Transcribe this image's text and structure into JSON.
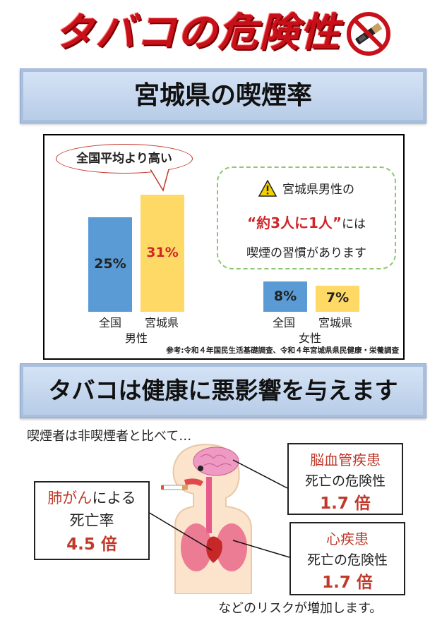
{
  "title": "タバコの危険性",
  "section1": {
    "heading": "宮城県の喫煙率",
    "bubble": "全国平均より高い",
    "callout": {
      "line1": "宮城県男性の",
      "emphasis": "“約3人に1人”",
      "line2_suffix": "には",
      "line3": "喫煙の習慣があります"
    },
    "source": "参考:令和４年国民生活基礎調査、令和４年宮城県県民健康・栄養調査"
  },
  "chart_data": {
    "type": "bar",
    "groups": [
      {
        "name": "男性",
        "categories": [
          "全国",
          "宮城県"
        ],
        "values": [
          25,
          31
        ],
        "labels": [
          "25%",
          "31%"
        ]
      },
      {
        "name": "女性",
        "categories": [
          "全国",
          "宮城県"
        ],
        "values": [
          8,
          7
        ],
        "labels": [
          "8%",
          "7%"
        ]
      }
    ],
    "units": "%",
    "colors": {
      "national": "#5b9bd5",
      "miyagi": "#ffd966",
      "highlight_text": "#d0262a"
    }
  },
  "section2": {
    "heading": "タバコは健康に悪影響を与えます",
    "intro": "喫煙者は非喫煙者と比べて…",
    "lung": {
      "disease": "肺がん",
      "suffix": "による",
      "line2": "死亡率",
      "value": "4.5 倍"
    },
    "brain": {
      "disease": "脳血管疾患",
      "line2": "死亡の危険性",
      "value": "1.7 倍"
    },
    "heart": {
      "disease": "心疾患",
      "line2": "死亡の危険性",
      "value": "1.7 倍"
    },
    "outro": "などのリスクが増加します。"
  },
  "icons": [
    "no-smoking-icon",
    "warning-icon",
    "human-body-illustration"
  ]
}
